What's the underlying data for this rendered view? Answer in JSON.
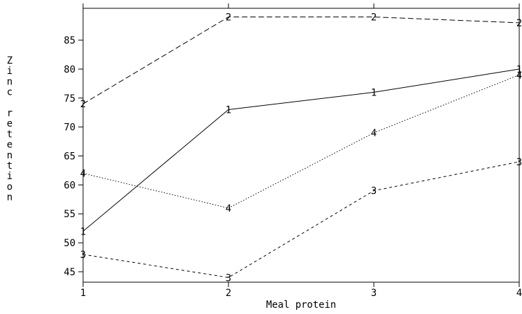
{
  "chart_data": {
    "type": "line",
    "xlabel": "Meal protein",
    "ylabel": "Zinc retention",
    "x": [
      1,
      2,
      3,
      4
    ],
    "xticks": [
      "1",
      "2",
      "3",
      "4"
    ],
    "yticks": [
      45,
      50,
      55,
      60,
      65,
      70,
      75,
      80,
      85
    ],
    "xlim": [
      1,
      4
    ],
    "ylim": [
      43.2,
      90.5
    ],
    "grid": false,
    "series": [
      {
        "name": "1",
        "values": [
          52,
          73,
          76,
          80
        ],
        "dash": "solid"
      },
      {
        "name": "2",
        "values": [
          74,
          89,
          89,
          88
        ],
        "dash": "dashed"
      },
      {
        "name": "3",
        "values": [
          48,
          44,
          59,
          64
        ],
        "dash": "short-dash"
      },
      {
        "name": "4",
        "values": [
          62,
          56,
          69,
          79
        ],
        "dash": "dotted"
      }
    ]
  }
}
